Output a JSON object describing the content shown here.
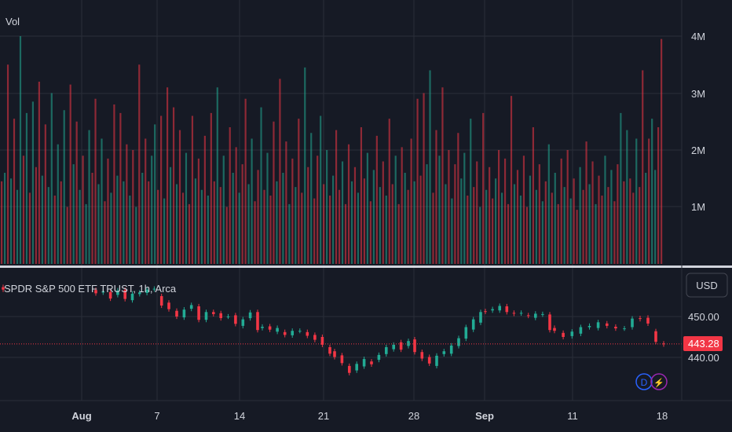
{
  "volume_pane": {
    "label": "Vol",
    "axis_ticks": [
      "1M",
      "2M",
      "3M",
      "4M"
    ]
  },
  "price_pane": {
    "symbol_label": "SPDR S&P 500 ETF TRUST, 1h, Arca",
    "currency_label": "USD",
    "axis_ticks": [
      "440.00",
      "450.00"
    ],
    "last_price_label": "443.28",
    "badges": {
      "d_label": "D",
      "bolt_label": "⚡"
    }
  },
  "time_axis": {
    "ticks": [
      "Aug",
      "7",
      "14",
      "21",
      "28",
      "Sep",
      "11",
      "18"
    ]
  },
  "colors": {
    "background": "#161a25",
    "up": "#22ab94",
    "down": "#f23645",
    "grid": "#2a2e39",
    "text": "#d1d4dc",
    "last_price_line": "#f23645",
    "d_badge": "#2962ff",
    "bolt_badge": "#9c27b0"
  },
  "chart_data": [
    {
      "type": "bar",
      "title": "Vol",
      "y_ticks": [
        "1M",
        "2M",
        "3M",
        "4M"
      ],
      "ylim": [
        0,
        4400000
      ],
      "volume_series": [
        {
          "m": 1.45,
          "up": false
        },
        {
          "m": 1.6,
          "up": true
        },
        {
          "m": 3.5,
          "up": false
        },
        {
          "m": 1.5,
          "up": true
        },
        {
          "m": 2.55,
          "up": false
        },
        {
          "m": 1.3,
          "up": true
        },
        {
          "m": 4.0,
          "up": true
        },
        {
          "m": 1.9,
          "up": false
        },
        {
          "m": 2.65,
          "up": true
        },
        {
          "m": 1.25,
          "up": false
        },
        {
          "m": 2.85,
          "up": true
        },
        {
          "m": 1.7,
          "up": false
        },
        {
          "m": 3.2,
          "up": false
        },
        {
          "m": 1.55,
          "up": true
        },
        {
          "m": 2.45,
          "up": false
        },
        {
          "m": 1.35,
          "up": true
        },
        {
          "m": 3.0,
          "up": true
        },
        {
          "m": 1.2,
          "up": false
        },
        {
          "m": 2.1,
          "up": true
        },
        {
          "m": 1.45,
          "up": false
        },
        {
          "m": 2.7,
          "up": true
        },
        {
          "m": 1.0,
          "up": false
        },
        {
          "m": 3.15,
          "up": false
        },
        {
          "m": 1.75,
          "up": true
        },
        {
          "m": 2.5,
          "up": false
        },
        {
          "m": 1.3,
          "up": true
        },
        {
          "m": 1.9,
          "up": false
        },
        {
          "m": 1.05,
          "up": true
        },
        {
          "m": 2.35,
          "up": true
        },
        {
          "m": 1.6,
          "up": false
        },
        {
          "m": 2.9,
          "up": false
        },
        {
          "m": 1.4,
          "up": true
        },
        {
          "m": 2.2,
          "up": true
        },
        {
          "m": 1.1,
          "up": false
        },
        {
          "m": 1.85,
          "up": false
        },
        {
          "m": 1.25,
          "up": true
        },
        {
          "m": 2.8,
          "up": false
        },
        {
          "m": 1.55,
          "up": true
        },
        {
          "m": 2.65,
          "up": false
        },
        {
          "m": 1.45,
          "up": true
        },
        {
          "m": 2.1,
          "up": false
        },
        {
          "m": 1.2,
          "up": true
        },
        {
          "m": 2.0,
          "up": false
        },
        {
          "m": 1.0,
          "up": true
        },
        {
          "m": 3.5,
          "up": false
        },
        {
          "m": 1.6,
          "up": true
        },
        {
          "m": 2.2,
          "up": false
        },
        {
          "m": 1.45,
          "up": false
        },
        {
          "m": 1.9,
          "up": true
        },
        {
          "m": 2.45,
          "up": true
        },
        {
          "m": 1.3,
          "up": false
        },
        {
          "m": 2.6,
          "up": false
        },
        {
          "m": 1.15,
          "up": true
        },
        {
          "m": 3.1,
          "up": false
        },
        {
          "m": 1.7,
          "up": true
        },
        {
          "m": 2.75,
          "up": false
        },
        {
          "m": 1.4,
          "up": true
        },
        {
          "m": 2.35,
          "up": false
        },
        {
          "m": 1.25,
          "up": false
        },
        {
          "m": 1.95,
          "up": true
        },
        {
          "m": 1.05,
          "up": false
        },
        {
          "m": 2.6,
          "up": false
        },
        {
          "m": 1.5,
          "up": true
        },
        {
          "m": 1.85,
          "up": false
        },
        {
          "m": 1.3,
          "up": true
        },
        {
          "m": 2.25,
          "up": false
        },
        {
          "m": 1.2,
          "up": true
        },
        {
          "m": 2.65,
          "up": false
        },
        {
          "m": 1.45,
          "up": false
        },
        {
          "m": 3.1,
          "up": true
        },
        {
          "m": 1.35,
          "up": false
        },
        {
          "m": 1.9,
          "up": true
        },
        {
          "m": 1.0,
          "up": false
        },
        {
          "m": 2.4,
          "up": false
        },
        {
          "m": 1.6,
          "up": true
        },
        {
          "m": 2.05,
          "up": false
        },
        {
          "m": 1.25,
          "up": true
        },
        {
          "m": 1.75,
          "up": false
        },
        {
          "m": 2.9,
          "up": false
        },
        {
          "m": 1.4,
          "up": true
        },
        {
          "m": 2.2,
          "up": true
        },
        {
          "m": 1.1,
          "up": false
        },
        {
          "m": 1.65,
          "up": false
        },
        {
          "m": 2.75,
          "up": true
        },
        {
          "m": 1.3,
          "up": false
        },
        {
          "m": 1.95,
          "up": true
        },
        {
          "m": 1.2,
          "up": false
        },
        {
          "m": 2.5,
          "up": false
        },
        {
          "m": 1.45,
          "up": true
        },
        {
          "m": 3.25,
          "up": false
        },
        {
          "m": 1.6,
          "up": true
        },
        {
          "m": 2.15,
          "up": false
        },
        {
          "m": 1.05,
          "up": true
        },
        {
          "m": 1.85,
          "up": false
        },
        {
          "m": 1.35,
          "up": true
        },
        {
          "m": 2.55,
          "up": false
        },
        {
          "m": 1.25,
          "up": false
        },
        {
          "m": 3.45,
          "up": true
        },
        {
          "m": 1.7,
          "up": false
        },
        {
          "m": 2.3,
          "up": true
        },
        {
          "m": 1.15,
          "up": false
        },
        {
          "m": 1.9,
          "up": false
        },
        {
          "m": 2.6,
          "up": true
        },
        {
          "m": 1.4,
          "up": false
        },
        {
          "m": 2.0,
          "up": true
        },
        {
          "m": 1.2,
          "up": false
        },
        {
          "m": 1.55,
          "up": true
        },
        {
          "m": 2.35,
          "up": false
        },
        {
          "m": 1.3,
          "up": false
        },
        {
          "m": 1.8,
          "up": true
        },
        {
          "m": 1.05,
          "up": false
        },
        {
          "m": 2.1,
          "up": false
        },
        {
          "m": 1.45,
          "up": true
        },
        {
          "m": 1.7,
          "up": false
        },
        {
          "m": 1.25,
          "up": true
        },
        {
          "m": 2.4,
          "up": false
        },
        {
          "m": 1.5,
          "up": false
        },
        {
          "m": 1.95,
          "up": true
        },
        {
          "m": 1.1,
          "up": false
        },
        {
          "m": 1.65,
          "up": true
        },
        {
          "m": 2.25,
          "up": false
        },
        {
          "m": 1.35,
          "up": true
        },
        {
          "m": 1.8,
          "up": false
        },
        {
          "m": 1.2,
          "up": true
        },
        {
          "m": 2.55,
          "up": false
        },
        {
          "m": 1.4,
          "up": false
        },
        {
          "m": 1.9,
          "up": true
        },
        {
          "m": 1.05,
          "up": false
        },
        {
          "m": 2.05,
          "up": false
        },
        {
          "m": 1.6,
          "up": true
        },
        {
          "m": 1.3,
          "up": false
        },
        {
          "m": 2.2,
          "up": false
        },
        {
          "m": 1.45,
          "up": true
        },
        {
          "m": 2.9,
          "up": false
        },
        {
          "m": 1.55,
          "up": false
        },
        {
          "m": 3.0,
          "up": false
        },
        {
          "m": 1.75,
          "up": true
        },
        {
          "m": 3.4,
          "up": true
        },
        {
          "m": 1.25,
          "up": false
        },
        {
          "m": 2.35,
          "up": false
        },
        {
          "m": 1.9,
          "up": true
        },
        {
          "m": 3.1,
          "up": false
        },
        {
          "m": 1.4,
          "up": true
        },
        {
          "m": 2.0,
          "up": false
        },
        {
          "m": 1.15,
          "up": true
        },
        {
          "m": 1.75,
          "up": false
        },
        {
          "m": 2.3,
          "up": false
        },
        {
          "m": 1.5,
          "up": true
        },
        {
          "m": 1.95,
          "up": true
        },
        {
          "m": 1.2,
          "up": false
        },
        {
          "m": 2.55,
          "up": true
        },
        {
          "m": 1.35,
          "up": false
        },
        {
          "m": 1.8,
          "up": false
        },
        {
          "m": 1.0,
          "up": true
        },
        {
          "m": 2.65,
          "up": false
        },
        {
          "m": 1.3,
          "up": true
        },
        {
          "m": 1.7,
          "up": false
        },
        {
          "m": 1.15,
          "up": false
        },
        {
          "m": 1.5,
          "up": true
        },
        {
          "m": 2.0,
          "up": false
        },
        {
          "m": 1.25,
          "up": true
        },
        {
          "m": 1.85,
          "up": false
        },
        {
          "m": 1.05,
          "up": false
        },
        {
          "m": 2.95,
          "up": false
        },
        {
          "m": 1.4,
          "up": true
        },
        {
          "m": 1.65,
          "up": false
        },
        {
          "m": 1.2,
          "up": true
        },
        {
          "m": 1.9,
          "up": false
        },
        {
          "m": 1.0,
          "up": false
        },
        {
          "m": 1.55,
          "up": true
        },
        {
          "m": 2.4,
          "up": false
        },
        {
          "m": 1.3,
          "up": true
        },
        {
          "m": 1.75,
          "up": false
        },
        {
          "m": 1.1,
          "up": true
        },
        {
          "m": 1.45,
          "up": false
        },
        {
          "m": 2.1,
          "up": true
        },
        {
          "m": 1.25,
          "up": false
        },
        {
          "m": 1.6,
          "up": true
        },
        {
          "m": 1.05,
          "up": false
        },
        {
          "m": 1.85,
          "up": false
        },
        {
          "m": 1.35,
          "up": true
        },
        {
          "m": 2.0,
          "up": false
        },
        {
          "m": 1.15,
          "up": true
        },
        {
          "m": 1.5,
          "up": false
        },
        {
          "m": 0.95,
          "up": false
        },
        {
          "m": 1.7,
          "up": true
        },
        {
          "m": 1.3,
          "up": false
        },
        {
          "m": 2.15,
          "up": false
        },
        {
          "m": 1.4,
          "up": true
        },
        {
          "m": 1.8,
          "up": false
        },
        {
          "m": 1.05,
          "up": true
        },
        {
          "m": 1.55,
          "up": false
        },
        {
          "m": 1.2,
          "up": false
        },
        {
          "m": 1.9,
          "up": true
        },
        {
          "m": 1.35,
          "up": false
        },
        {
          "m": 1.65,
          "up": true
        },
        {
          "m": 1.1,
          "up": false
        },
        {
          "m": 1.75,
          "up": false
        },
        {
          "m": 2.65,
          "up": true
        },
        {
          "m": 1.45,
          "up": false
        },
        {
          "m": 2.35,
          "up": true
        },
        {
          "m": 1.5,
          "up": false
        },
        {
          "m": 1.25,
          "up": false
        },
        {
          "m": 2.2,
          "up": true
        },
        {
          "m": 1.35,
          "up": false
        },
        {
          "m": 3.4,
          "up": false
        },
        {
          "m": 1.6,
          "up": true
        },
        {
          "m": 2.2,
          "up": false
        },
        {
          "m": 2.55,
          "up": true
        },
        {
          "m": 1.65,
          "up": true
        },
        {
          "m": 2.4,
          "up": false
        },
        {
          "m": 3.95,
          "up": false
        }
      ]
    },
    {
      "type": "candlestick",
      "title": "SPDR S&P 500 ETF TRUST, 1h, Arca",
      "y_ticks": [
        "440.00",
        "450.00"
      ],
      "ylim": [
        433.6,
        458.6
      ],
      "last_price": 443.28,
      "x_ticks": [
        "Aug",
        "7",
        "14",
        "21",
        "28",
        "Sep",
        "11",
        "18"
      ],
      "sessions": [
        {
          "o": 457.2,
          "c": 456.6
        },
        {
          "o": 456.5,
          "c": 455.7
        },
        {
          "o": 455.9,
          "c": 456.2
        },
        {
          "o": 456.0,
          "c": 454.4
        },
        {
          "o": 455.3,
          "c": 456.4
        },
        {
          "o": 456.5,
          "c": 454.3
        },
        {
          "o": 454.0,
          "c": 455.6
        },
        {
          "o": 455.5,
          "c": 455.9
        },
        {
          "o": 455.8,
          "c": 456.6
        },
        {
          "o": 456.7,
          "c": 456.8
        },
        {
          "o": 455.0,
          "c": 452.7
        },
        {
          "o": 453.4,
          "c": 451.8
        },
        {
          "o": 451.4,
          "c": 450.0
        },
        {
          "o": 449.8,
          "c": 451.7
        },
        {
          "o": 451.9,
          "c": 452.8
        },
        {
          "o": 452.5,
          "c": 449.2
        },
        {
          "o": 449.2,
          "c": 451.1
        },
        {
          "o": 451.1,
          "c": 450.6
        },
        {
          "o": 450.8,
          "c": 449.6
        },
        {
          "o": 450.0,
          "c": 450.0
        },
        {
          "o": 450.3,
          "c": 448.2
        },
        {
          "o": 447.7,
          "c": 449.3
        },
        {
          "o": 449.6,
          "c": 451.0
        },
        {
          "o": 451.1,
          "c": 446.7
        },
        {
          "o": 447.2,
          "c": 447.5
        },
        {
          "o": 447.6,
          "c": 446.8
        },
        {
          "o": 446.3,
          "c": 447.2
        },
        {
          "o": 446.2,
          "c": 445.5
        },
        {
          "o": 445.4,
          "c": 446.5
        },
        {
          "o": 446.5,
          "c": 446.5
        },
        {
          "o": 446.2,
          "c": 445.3
        },
        {
          "o": 445.5,
          "c": 444.3
        },
        {
          "o": 445.0,
          "c": 443.1
        },
        {
          "o": 442.5,
          "c": 440.9
        },
        {
          "o": 441.5,
          "c": 440.1
        },
        {
          "o": 440.5,
          "c": 438.6
        },
        {
          "o": 437.9,
          "c": 436.2
        },
        {
          "o": 436.8,
          "c": 438.4
        },
        {
          "o": 437.8,
          "c": 439.6
        },
        {
          "o": 439.0,
          "c": 438.3
        },
        {
          "o": 439.4,
          "c": 440.6
        },
        {
          "o": 440.8,
          "c": 442.5
        },
        {
          "o": 442.0,
          "c": 443.1
        },
        {
          "o": 443.7,
          "c": 441.9
        },
        {
          "o": 442.8,
          "c": 444.0
        },
        {
          "o": 444.4,
          "c": 441.3
        },
        {
          "o": 441.3,
          "c": 439.7
        },
        {
          "o": 440.1,
          "c": 438.5
        },
        {
          "o": 437.9,
          "c": 440.4
        },
        {
          "o": 440.8,
          "c": 441.5
        },
        {
          "o": 440.9,
          "c": 442.9
        },
        {
          "o": 442.8,
          "c": 444.7
        },
        {
          "o": 444.6,
          "c": 447.4
        },
        {
          "o": 446.8,
          "c": 449.3
        },
        {
          "o": 448.5,
          "c": 451.1
        },
        {
          "o": 451.3,
          "c": 451.2
        },
        {
          "o": 451.5,
          "c": 451.8
        },
        {
          "o": 451.5,
          "c": 452.6
        },
        {
          "o": 452.5,
          "c": 451.1
        },
        {
          "o": 450.9,
          "c": 450.7
        },
        {
          "o": 450.8,
          "c": 450.9
        },
        {
          "o": 450.3,
          "c": 450.2
        },
        {
          "o": 449.7,
          "c": 450.7
        },
        {
          "o": 450.5,
          "c": 450.6
        },
        {
          "o": 450.5,
          "c": 446.7
        },
        {
          "o": 447.2,
          "c": 446.5
        },
        {
          "o": 446.0,
          "c": 445.0
        },
        {
          "o": 445.2,
          "c": 446.3
        },
        {
          "o": 445.8,
          "c": 447.4
        },
        {
          "o": 447.4,
          "c": 447.7
        },
        {
          "o": 447.2,
          "c": 448.6
        },
        {
          "o": 448.3,
          "c": 447.7
        },
        {
          "o": 447.5,
          "c": 447.1
        },
        {
          "o": 447.1,
          "c": 447.1
        },
        {
          "o": 447.4,
          "c": 449.5
        },
        {
          "o": 449.6,
          "c": 449.4
        },
        {
          "o": 449.7,
          "c": 448.3
        },
        {
          "o": 446.4,
          "c": 443.8
        },
        {
          "o": 443.4,
          "c": 443.2
        }
      ]
    }
  ]
}
